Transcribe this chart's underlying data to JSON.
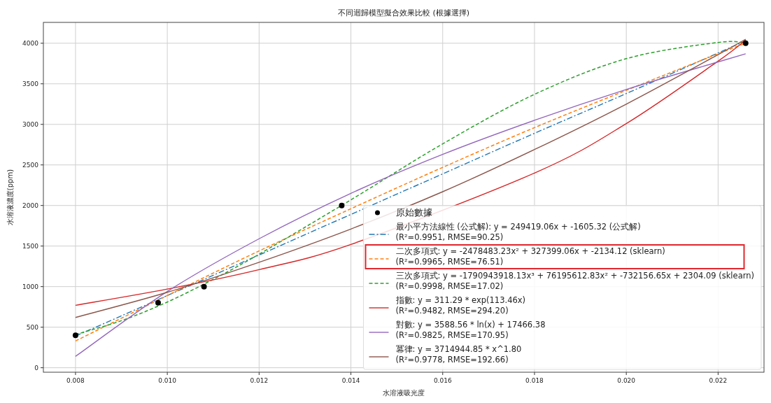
{
  "chart_data": {
    "type": "line",
    "title": "不同迴歸模型擬合效果比較 (根據選擇)",
    "xlabel": "水溶液吸光度",
    "ylabel": "水溶液濃度(ppm)",
    "xlim": [
      0.0073,
      0.023
    ],
    "ylim": [
      -55,
      4257
    ],
    "xticks": [
      0.008,
      {
        "value": 0.01,
        "label": "0.010"
      },
      0.012,
      0.014,
      0.016,
      0.018,
      {
        "value": 0.02,
        "label": "0.020"
      },
      0.022
    ],
    "yticks": [
      0,
      500,
      1000,
      1500,
      2000,
      2500,
      3000,
      3500,
      4000
    ],
    "grid": true,
    "legend": "bottom right",
    "series": [
      {
        "name": "原始數據",
        "type": "scatter",
        "marker": "circle",
        "color": "#000000",
        "x": [
          0.008,
          0.0098,
          0.0108,
          0.0138,
          0.0226
        ],
        "values": [
          400,
          800,
          1000,
          2000,
          4000
        ]
      },
      {
        "name": "最小平方法線性 (公式解): y = 249419.06x + -1605.32 (公式解)\n(R²=0.9951, RMSE=90.25)",
        "line_style": "dashdot",
        "color": "#1f77b4",
        "x": [
          0.008,
          0.01,
          0.012,
          0.014,
          0.016,
          0.018,
          0.02,
          0.022,
          0.0226
        ],
        "values": [
          390,
          890,
          1390,
          1890,
          2390,
          2890,
          3380,
          3880,
          4030
        ]
      },
      {
        "name": "二次多項式: y = -2478483.23x² + 327399.06x + -2134.12 (sklearn)\n(R²=0.9965, RMSE=76.51)",
        "line_style": "dashed",
        "color": "#ff7f0e",
        "x": [
          0.008,
          0.01,
          0.012,
          0.014,
          0.016,
          0.018,
          0.02,
          0.022,
          0.0226
        ],
        "values": [
          330,
          890,
          1440,
          1960,
          2470,
          2960,
          3420,
          3870,
          4000
        ]
      },
      {
        "name": "三次多項式: y = -1790943918.13x³ + 76195612.83x² + -732156.65x + 2304.09 (sklearn)\n(R²=0.9998, RMSE=17.02)",
        "line_style": "dashed",
        "color": "#2ca02c",
        "x": [
          0.008,
          0.009,
          0.01,
          0.011,
          0.012,
          0.014,
          0.016,
          0.018,
          0.02,
          0.022,
          0.0226
        ],
        "values": [
          410,
          580,
          810,
          1090,
          1400,
          2070,
          2760,
          3370,
          3810,
          4010,
          4000
        ]
      },
      {
        "name": "指數: y = 311.29 * exp(113.46x)\n(R²=0.9482, RMSE=294.20)",
        "line_style": "solid",
        "color": "#d62728",
        "x": [
          0.008,
          0.01,
          0.012,
          0.014,
          0.018,
          0.02,
          0.022,
          0.0226
        ],
        "values": [
          770,
          970,
          1210,
          1520,
          2400,
          3010,
          3780,
          4040
        ]
      },
      {
        "name": "對數: y = 3588.56 * ln(x) + 17466.38\n(R²=0.9825, RMSE=170.95)",
        "line_style": "solid",
        "color": "#9467bd",
        "x": [
          0.008,
          0.01,
          0.012,
          0.014,
          0.016,
          0.018,
          0.02,
          0.022,
          0.0226
        ],
        "values": [
          140,
          940,
          1590,
          2150,
          2630,
          3050,
          3430,
          3770,
          3870
        ]
      },
      {
        "name": "冪律: y = 3714944.85 * x^1.80\n(R²=0.9778, RMSE=192.66)",
        "line_style": "solid",
        "color": "#8c564b",
        "x": [
          0.008,
          0.01,
          0.012,
          0.014,
          0.016,
          0.018,
          0.02,
          0.022,
          0.0226
        ],
        "values": [
          620,
          930,
          1300,
          1710,
          2170,
          2690,
          3250,
          3860,
          4050
        ]
      }
    ]
  }
}
